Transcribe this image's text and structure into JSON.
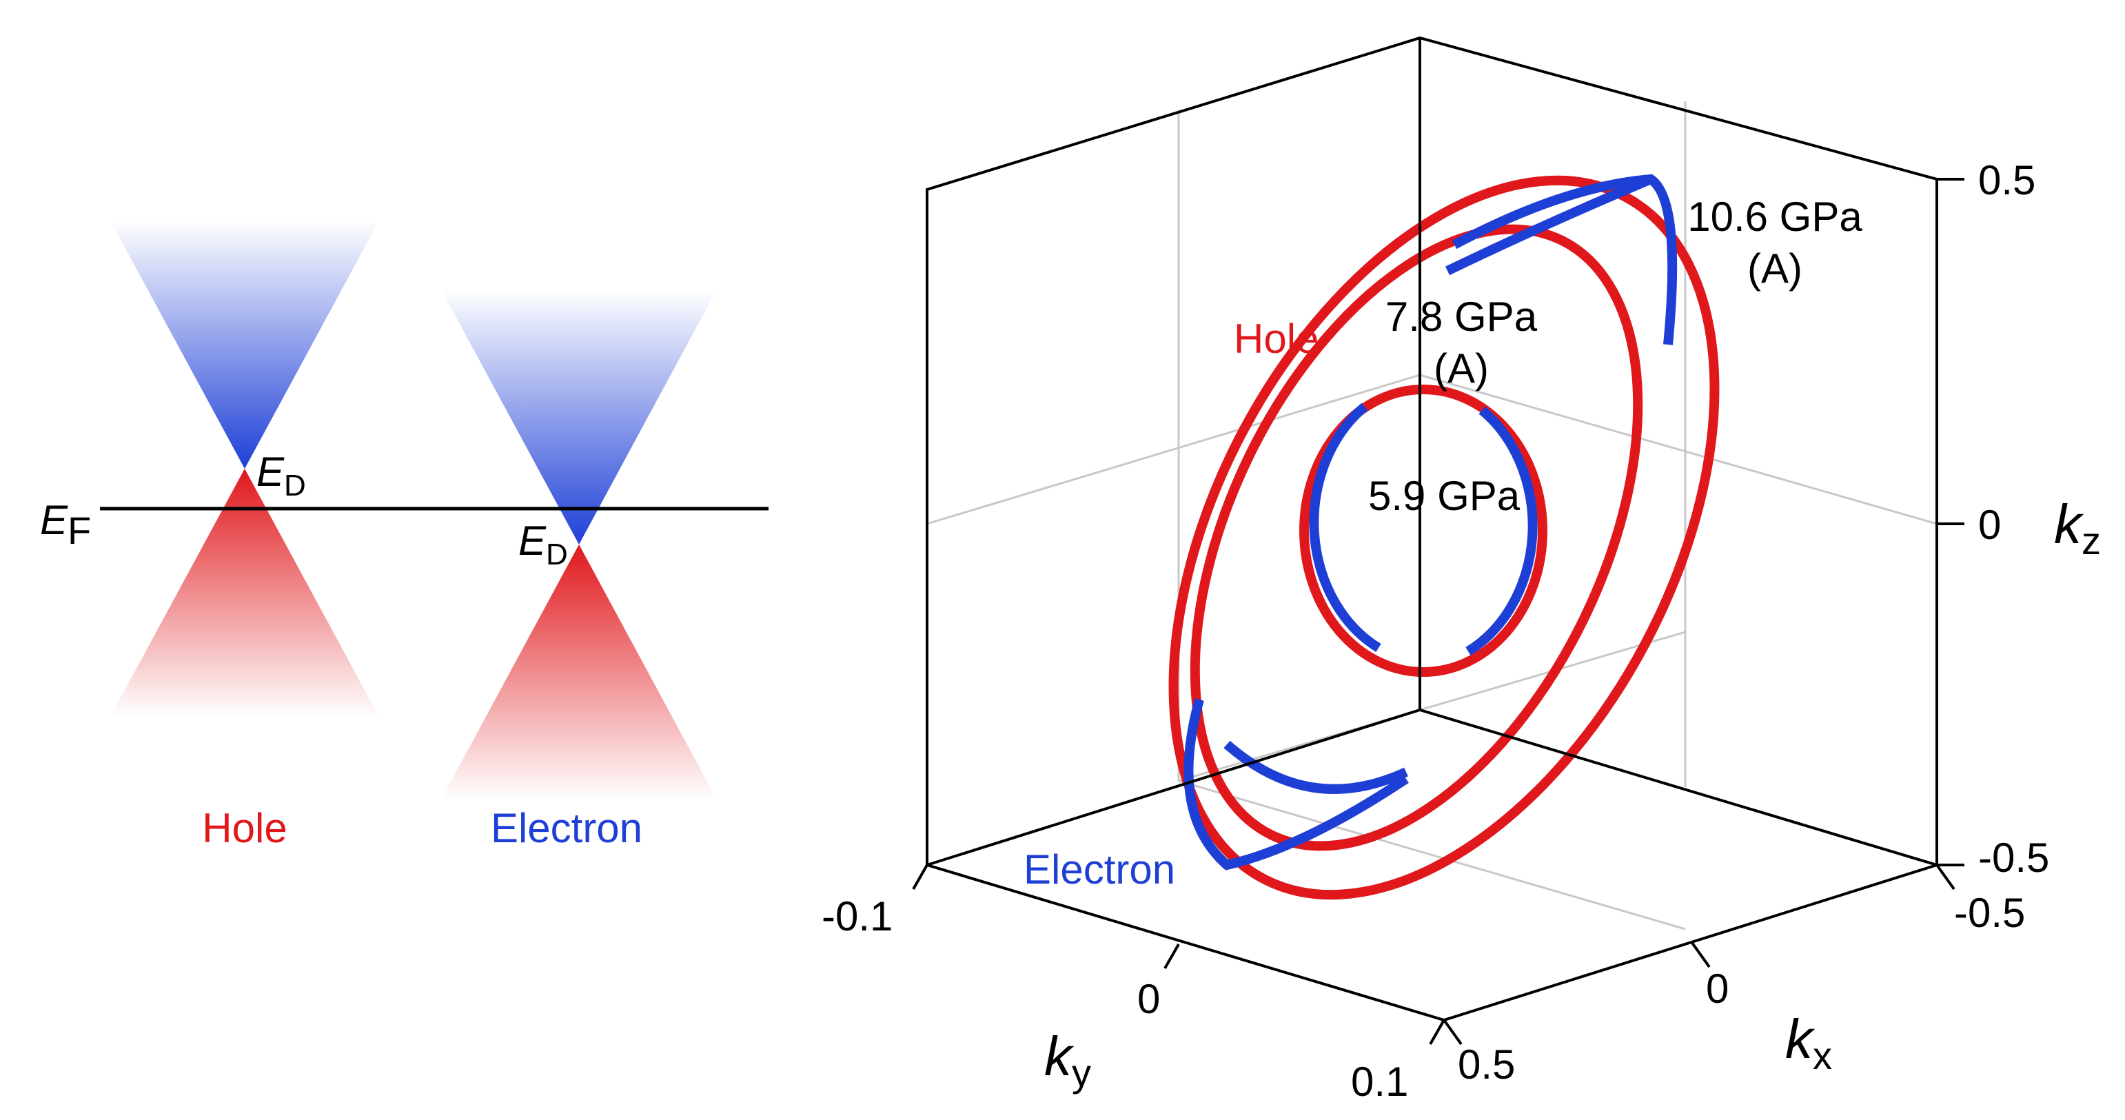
{
  "colors": {
    "hole": "#e0181c",
    "electron": "#1e3fd6",
    "line": "#000000",
    "grid": "#c8c8c8"
  },
  "left": {
    "fermi_label": "E",
    "fermi_sub": "F",
    "dirac_label": "E",
    "dirac_sub": "D",
    "hole_label": "Hole",
    "electron_label": "Electron"
  },
  "right": {
    "axes": {
      "kz": {
        "name": "k",
        "sub": "z",
        "ticks": [
          "0.5",
          "0",
          "-0.5"
        ],
        "range": [
          -0.5,
          0.5
        ]
      },
      "kx": {
        "name": "k",
        "sub": "x",
        "ticks": [
          "-0.5",
          "0",
          "0.5"
        ],
        "range": [
          -0.5,
          0.5
        ]
      },
      "ky": {
        "name": "k",
        "sub": "y",
        "ticks": [
          "-0.1",
          "0",
          "0.1"
        ],
        "range": [
          -0.1,
          0.1
        ]
      }
    },
    "curves": [
      {
        "label": "5.9 GPa"
      },
      {
        "label": "7.8 GPa",
        "sub": "(A)"
      },
      {
        "label": "10.6 GPa",
        "sub": "(A)"
      }
    ],
    "hole_label": "Hole",
    "electron_label": "Electron"
  }
}
